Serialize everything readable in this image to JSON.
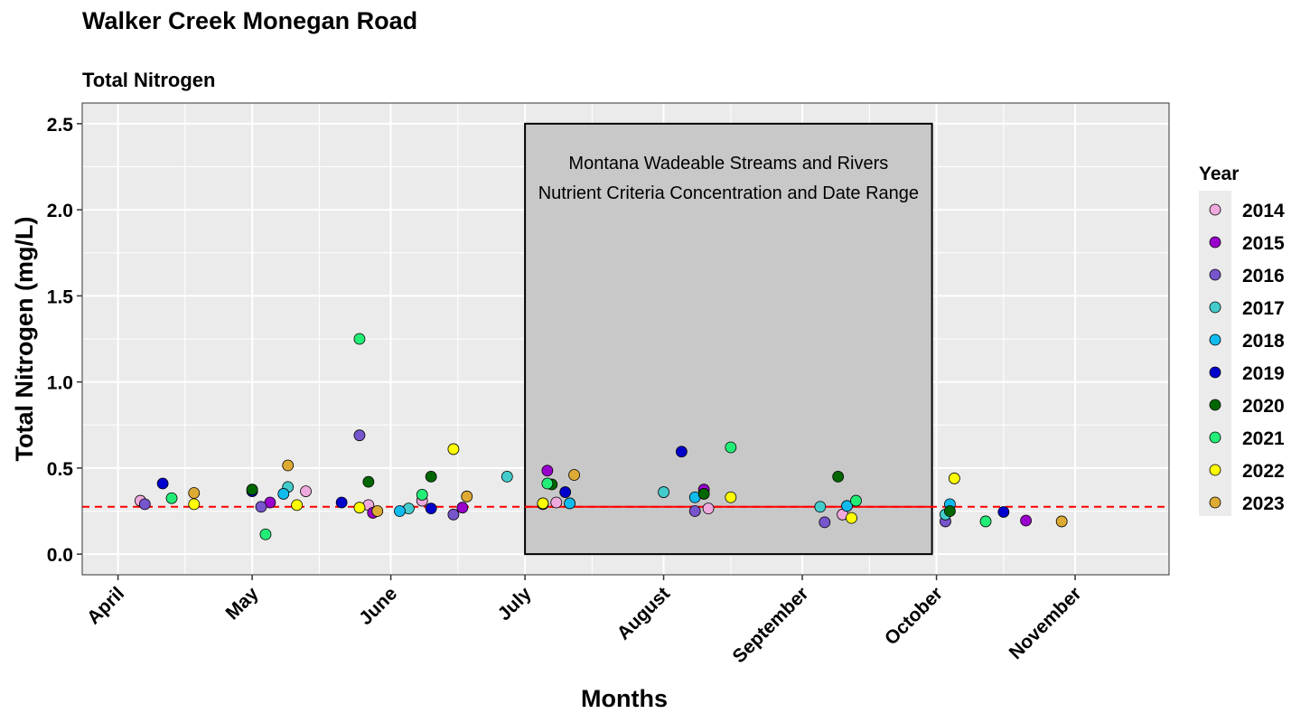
{
  "title": "Walker Creek Monegan Road",
  "subtitle": "Total Nitrogen",
  "chart_data": {
    "type": "scatter",
    "xlabel": "Months",
    "ylabel": "Total Nitrogen (mg/L)",
    "ylim": [
      -0.12,
      2.62
    ],
    "xlim": [
      "2000-03-24",
      "2000-11-22"
    ],
    "y_ticks": [
      "0.0",
      "0.5",
      "1.0",
      "1.5",
      "2.0",
      "2.5"
    ],
    "x_ticks": [
      {
        "label": "April",
        "date": "2000-04-01"
      },
      {
        "label": "May",
        "date": "2000-05-01"
      },
      {
        "label": "June",
        "date": "2000-06-01"
      },
      {
        "label": "July",
        "date": "2000-07-01"
      },
      {
        "label": "August",
        "date": "2000-08-01"
      },
      {
        "label": "September",
        "date": "2000-09-01"
      },
      {
        "label": "October",
        "date": "2000-10-01"
      },
      {
        "label": "November",
        "date": "2000-11-01"
      }
    ],
    "grid": true,
    "legend": {
      "title": "Year",
      "position": "right"
    },
    "criteria_box": {
      "lines": [
        "Montana Wadeable Streams and Rivers",
        "Nutrient Criteria Concentration and Date Range"
      ],
      "x_start": "2000-07-01",
      "x_end": "2000-09-30",
      "y_top": 2.5,
      "fill": "#c8c8c8"
    },
    "criteria_line": {
      "value": 0.275,
      "color": "#ff0000"
    },
    "series": [
      {
        "name": "2014",
        "color": "#eeaadd",
        "points": [
          {
            "x": "2000-04-06",
            "y": 0.31
          },
          {
            "x": "2000-05-13",
            "y": 0.365
          },
          {
            "x": "2000-05-27",
            "y": 0.285
          },
          {
            "x": "2000-06-08",
            "y": 0.31
          },
          {
            "x": "2000-07-08",
            "y": 0.3
          },
          {
            "x": "2000-08-11",
            "y": 0.265
          },
          {
            "x": "2000-09-10",
            "y": 0.23
          }
        ]
      },
      {
        "name": "2015",
        "color": "#9900cc",
        "points": [
          {
            "x": "2000-05-05",
            "y": 0.3
          },
          {
            "x": "2000-05-28",
            "y": 0.24
          },
          {
            "x": "2000-06-17",
            "y": 0.27
          },
          {
            "x": "2000-07-06",
            "y": 0.485
          },
          {
            "x": "2000-08-10",
            "y": 0.375
          },
          {
            "x": "2000-10-21",
            "y": 0.195
          }
        ]
      },
      {
        "name": "2016",
        "color": "#7755cc",
        "points": [
          {
            "x": "2000-04-07",
            "y": 0.29
          },
          {
            "x": "2000-05-03",
            "y": 0.275
          },
          {
            "x": "2000-05-25",
            "y": 0.69
          },
          {
            "x": "2000-06-15",
            "y": 0.23
          },
          {
            "x": "2000-07-05",
            "y": 0.29
          },
          {
            "x": "2000-08-08",
            "y": 0.25
          },
          {
            "x": "2000-09-06",
            "y": 0.185
          },
          {
            "x": "2000-10-03",
            "y": 0.19
          }
        ]
      },
      {
        "name": "2017",
        "color": "#44cccc",
        "points": [
          {
            "x": "2000-05-09",
            "y": 0.39
          },
          {
            "x": "2000-06-05",
            "y": 0.265
          },
          {
            "x": "2000-06-27",
            "y": 0.45
          },
          {
            "x": "2000-08-01",
            "y": 0.36
          },
          {
            "x": "2000-09-05",
            "y": 0.275
          },
          {
            "x": "2000-10-03",
            "y": 0.23
          }
        ]
      },
      {
        "name": "2018",
        "color": "#11bbee",
        "points": [
          {
            "x": "2000-05-08",
            "y": 0.35
          },
          {
            "x": "2000-06-03",
            "y": 0.25
          },
          {
            "x": "2000-07-11",
            "y": 0.295
          },
          {
            "x": "2000-08-08",
            "y": 0.33
          },
          {
            "x": "2000-09-11",
            "y": 0.28
          },
          {
            "x": "2000-10-04",
            "y": 0.29
          }
        ]
      },
      {
        "name": "2019",
        "color": "#0000cc",
        "points": [
          {
            "x": "2000-04-11",
            "y": 0.41
          },
          {
            "x": "2000-05-01",
            "y": 0.365
          },
          {
            "x": "2000-05-21",
            "y": 0.3
          },
          {
            "x": "2000-06-10",
            "y": 0.265
          },
          {
            "x": "2000-07-10",
            "y": 0.36
          },
          {
            "x": "2000-08-05",
            "y": 0.595
          },
          {
            "x": "2000-10-16",
            "y": 0.245
          }
        ]
      },
      {
        "name": "2020",
        "color": "#006600",
        "points": [
          {
            "x": "2000-05-01",
            "y": 0.375
          },
          {
            "x": "2000-05-27",
            "y": 0.42
          },
          {
            "x": "2000-06-10",
            "y": 0.45
          },
          {
            "x": "2000-07-07",
            "y": 0.405
          },
          {
            "x": "2000-08-10",
            "y": 0.35
          },
          {
            "x": "2000-09-09",
            "y": 0.45
          },
          {
            "x": "2000-10-04",
            "y": 0.25
          }
        ]
      },
      {
        "name": "2021",
        "color": "#22ee77",
        "points": [
          {
            "x": "2000-04-13",
            "y": 0.325
          },
          {
            "x": "2000-05-04",
            "y": 0.115
          },
          {
            "x": "2000-05-25",
            "y": 1.25
          },
          {
            "x": "2000-06-08",
            "y": 0.345
          },
          {
            "x": "2000-07-06",
            "y": 0.41
          },
          {
            "x": "2000-08-16",
            "y": 0.62
          },
          {
            "x": "2000-09-13",
            "y": 0.31
          },
          {
            "x": "2000-10-12",
            "y": 0.19
          }
        ]
      },
      {
        "name": "2022",
        "color": "#ffff00",
        "points": [
          {
            "x": "2000-04-18",
            "y": 0.29
          },
          {
            "x": "2000-05-11",
            "y": 0.285
          },
          {
            "x": "2000-05-25",
            "y": 0.27
          },
          {
            "x": "2000-06-15",
            "y": 0.61
          },
          {
            "x": "2000-07-05",
            "y": 0.295
          },
          {
            "x": "2000-08-16",
            "y": 0.33
          },
          {
            "x": "2000-09-12",
            "y": 0.21
          },
          {
            "x": "2000-10-05",
            "y": 0.44
          }
        ]
      },
      {
        "name": "2023",
        "color": "#ddaa33",
        "points": [
          {
            "x": "2000-04-18",
            "y": 0.355
          },
          {
            "x": "2000-05-09",
            "y": 0.515
          },
          {
            "x": "2000-05-29",
            "y": 0.25
          },
          {
            "x": "2000-06-18",
            "y": 0.335
          },
          {
            "x": "2000-07-12",
            "y": 0.46
          },
          {
            "x": "2000-10-29",
            "y": 0.19
          }
        ]
      }
    ]
  }
}
